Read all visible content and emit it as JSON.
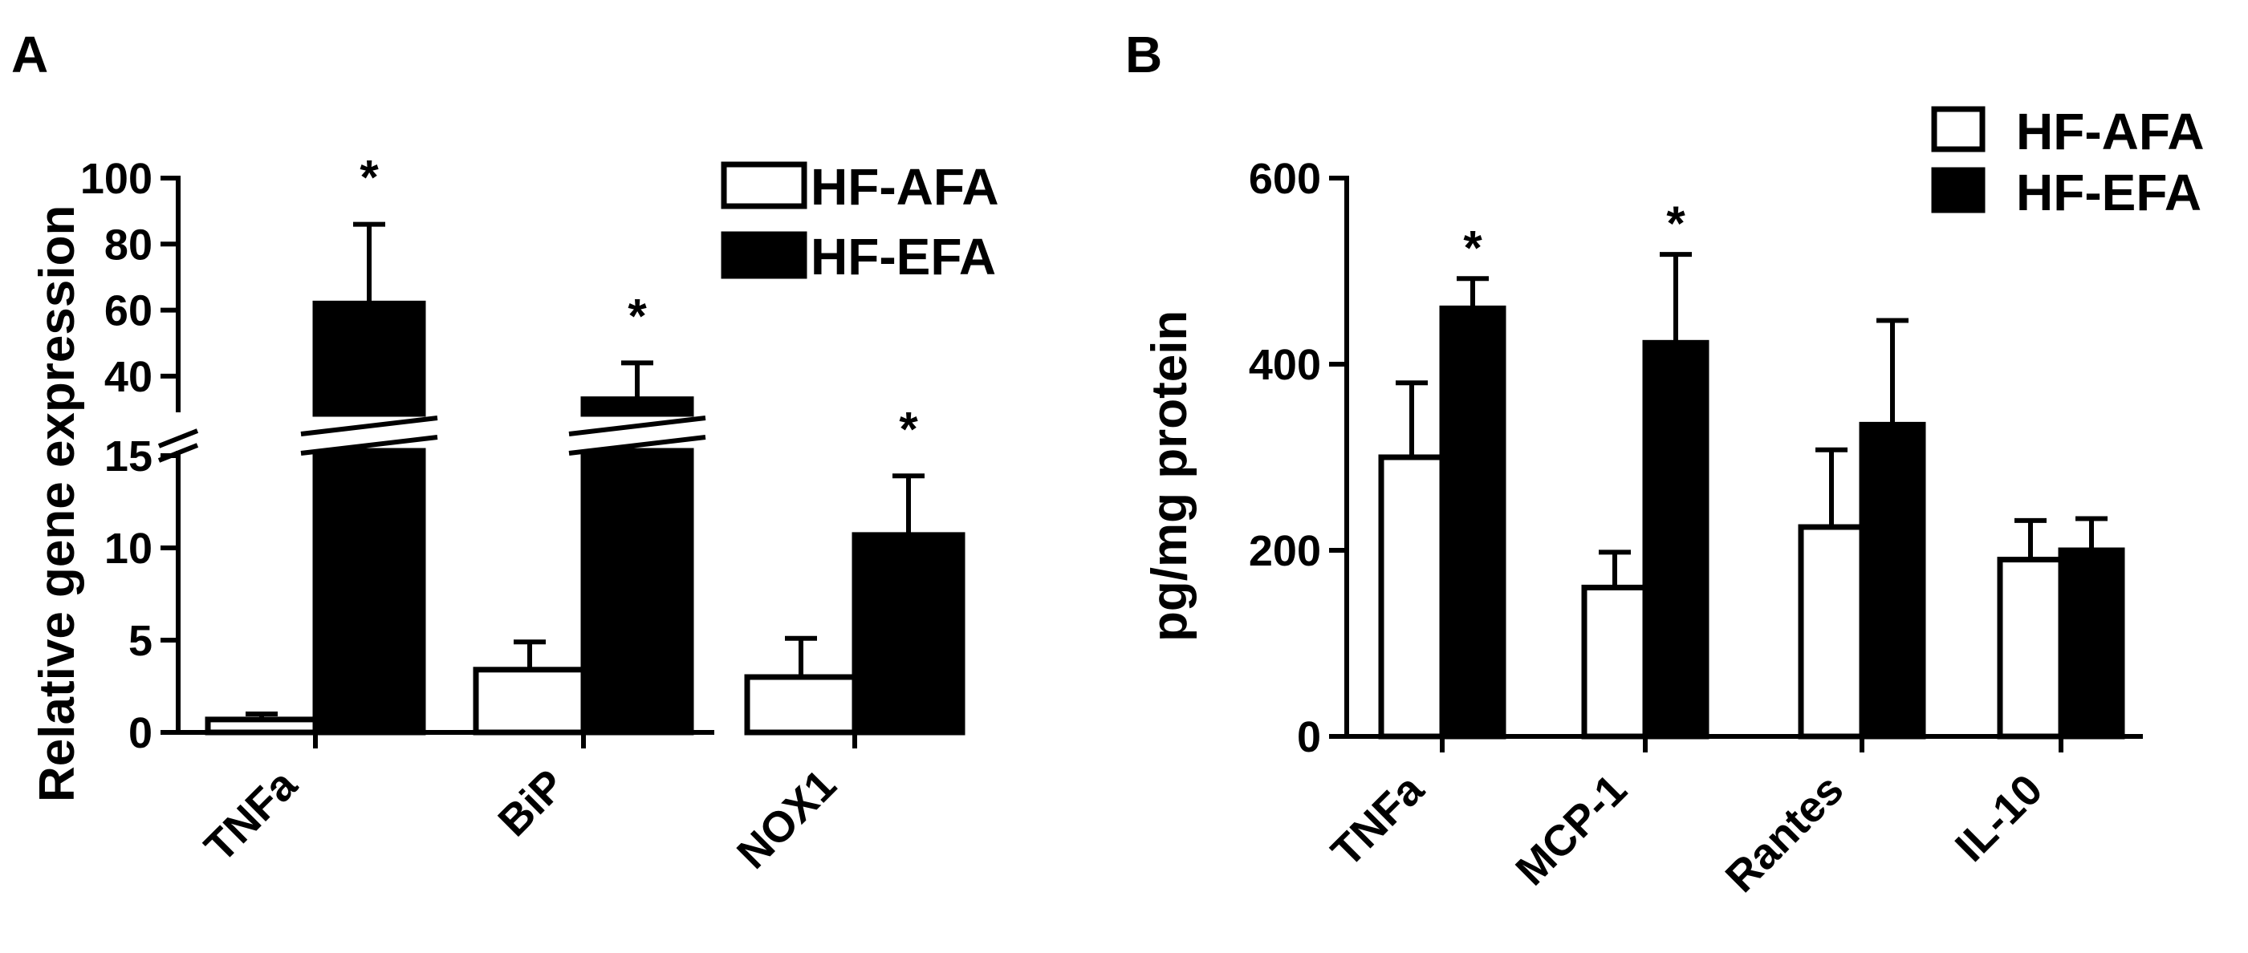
{
  "chart_data": [
    {
      "panel": "A",
      "type": "bar",
      "ylabel": "Relative gene expression",
      "axis_break": {
        "lower": [
          0,
          15
        ],
        "upper": [
          30,
          100
        ]
      },
      "lower_ticks": [
        0,
        5,
        10,
        15
      ],
      "upper_ticks": [
        40,
        60,
        80,
        100
      ],
      "categories": [
        "TNFa",
        "BiP",
        "NOX1"
      ],
      "series": [
        {
          "name": "HF-AFA",
          "fill": "#ffffff",
          "values": [
            0.7,
            3.4,
            3.0
          ],
          "errors": [
            0.3,
            1.5,
            2.1
          ]
        },
        {
          "name": "HF-EFA",
          "fill": "#000000",
          "values": [
            62,
            33,
            10.7
          ],
          "errors": [
            24,
            11,
            3.2
          ]
        }
      ],
      "significance": [
        "*",
        "*",
        "*"
      ]
    },
    {
      "panel": "B",
      "type": "bar",
      "ylabel": "pg/mg protein",
      "ylim": [
        0,
        600
      ],
      "yticks": [
        0,
        200,
        400,
        600
      ],
      "categories": [
        "TNFa",
        "MCP-1",
        "Rantes",
        "IL-10"
      ],
      "series": [
        {
          "name": "HF-AFA",
          "fill": "#ffffff",
          "values": [
            300,
            160,
            225,
            190
          ],
          "errors": [
            80,
            38,
            83,
            42
          ]
        },
        {
          "name": "HF-EFA",
          "fill": "#000000",
          "values": [
            460,
            423,
            335,
            200
          ],
          "errors": [
            32,
            95,
            112,
            34
          ]
        }
      ],
      "significance": [
        "*",
        "*",
        "",
        ""
      ]
    }
  ]
}
